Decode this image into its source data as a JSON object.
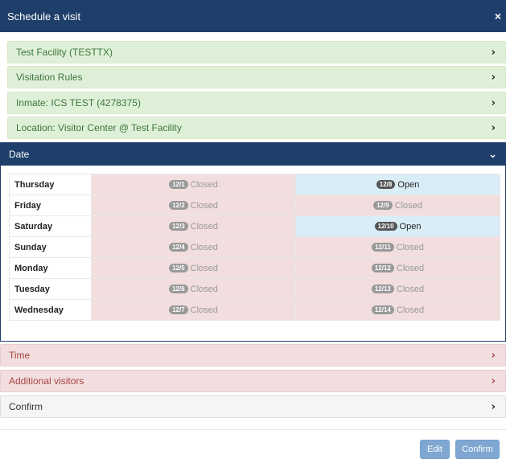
{
  "modal": {
    "title": "Schedule a visit",
    "close_glyph": "×"
  },
  "steps": [
    {
      "label": "Test Facility (TESTTX)"
    },
    {
      "label": "Visitation Rules"
    },
    {
      "label": "Inmate: ICS TEST (4278375)"
    },
    {
      "label": "Location: Visitor Center @ Test Facility"
    }
  ],
  "date_panel": {
    "title": "Date",
    "rows": [
      {
        "day": "Thursday",
        "w1": {
          "date": "12/1",
          "status": "Closed"
        },
        "w2": {
          "date": "12/8",
          "status": "Open"
        }
      },
      {
        "day": "Friday",
        "w1": {
          "date": "12/2",
          "status": "Closed"
        },
        "w2": {
          "date": "12/9",
          "status": "Closed"
        }
      },
      {
        "day": "Saturday",
        "w1": {
          "date": "12/3",
          "status": "Closed"
        },
        "w2": {
          "date": "12/10",
          "status": "Open"
        }
      },
      {
        "day": "Sunday",
        "w1": {
          "date": "12/4",
          "status": "Closed"
        },
        "w2": {
          "date": "12/11",
          "status": "Closed"
        }
      },
      {
        "day": "Monday",
        "w1": {
          "date": "12/5",
          "status": "Closed"
        },
        "w2": {
          "date": "12/12",
          "status": "Closed"
        }
      },
      {
        "day": "Tuesday",
        "w1": {
          "date": "12/6",
          "status": "Closed"
        },
        "w2": {
          "date": "12/13",
          "status": "Closed"
        }
      },
      {
        "day": "Wednesday",
        "w1": {
          "date": "12/7",
          "status": "Closed"
        },
        "w2": {
          "date": "12/14",
          "status": "Closed"
        }
      }
    ]
  },
  "later_steps": {
    "time": "Time",
    "additional_visitors": "Additional visitors",
    "confirm": "Confirm"
  },
  "buttons": {
    "edit": "Edit",
    "confirm": "Confirm"
  },
  "colors": {
    "header": "#1f3f6b",
    "completed_step": "#dff0d8",
    "pending_step": "#f2dede",
    "open_slot": "#d9edf7",
    "closed_slot": "#f2dede",
    "button": "#7fa7d2"
  },
  "icons": {
    "step_chevron": "chevron-right-icon",
    "panel_chevron": "chevron-down-icon",
    "close": "close-icon"
  }
}
